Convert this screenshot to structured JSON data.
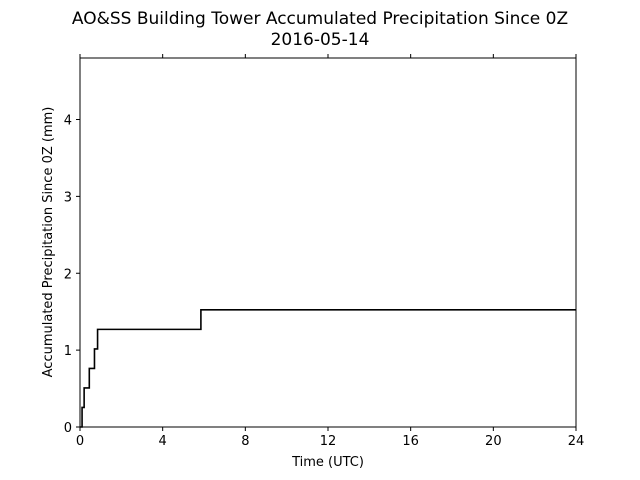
{
  "chart_data": {
    "type": "line",
    "title": "AO&SS Building Tower Accumulated Precipitation Since 0Z",
    "subtitle": "2016-05-14",
    "xlabel": "Time (UTC)",
    "ylabel": "Accumulated Precipitation Since 0Z (mm)",
    "xlim": [
      0,
      24
    ],
    "ylim": [
      0,
      4.8
    ],
    "xticks": [
      0,
      4,
      8,
      12,
      16,
      20,
      24
    ],
    "xtick_labels": [
      "0",
      "4",
      "8",
      "12",
      "16",
      "20",
      "24"
    ],
    "yticks": [
      0,
      1,
      2,
      3,
      4
    ],
    "ytick_labels": [
      "0",
      "1",
      "2",
      "3",
      "4"
    ],
    "grid": false,
    "step": true,
    "line_color": "#000000",
    "series": [
      {
        "x": [
          0.0,
          0.1,
          0.2,
          0.45,
          0.7,
          0.85,
          5.85,
          24.0
        ],
        "y": [
          0.0,
          0.254,
          0.508,
          0.762,
          1.016,
          1.27,
          1.524,
          1.524
        ]
      }
    ]
  }
}
